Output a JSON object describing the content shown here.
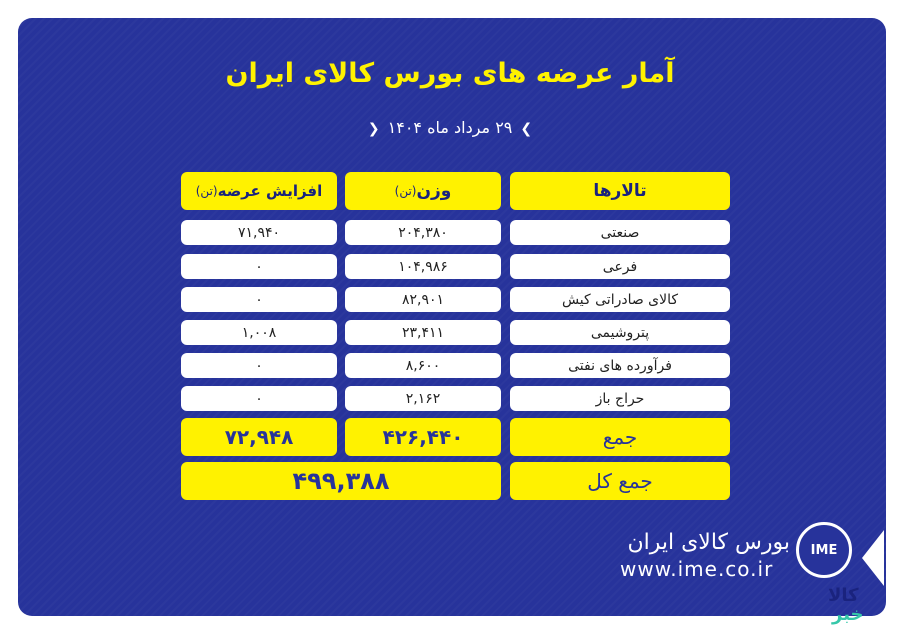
{
  "title": "آمار عرضه های بورس کالای ایران",
  "date": "۲۹ مرداد ماه ۱۴۰۴",
  "headers": {
    "halls": "تالارها",
    "weight": "وزن",
    "weight_unit": "(تن)",
    "increase": "افزایش عرضه",
    "increase_unit": "(تن)"
  },
  "rows": [
    {
      "hall": "صنعتی",
      "weight": "۲۰۴,۳۸۰",
      "increase": "۷۱,۹۴۰"
    },
    {
      "hall": "فرعی",
      "weight": "۱۰۴,۹۸۶",
      "increase": "۰"
    },
    {
      "hall": "کالای صادراتی کیش",
      "weight": "۸۲,۹۰۱",
      "increase": "۰"
    },
    {
      "hall": "پتروشیمی",
      "weight": "۲۳,۴۱۱",
      "increase": "۱,۰۰۸"
    },
    {
      "hall": "فرآورده های نفتی",
      "weight": "۸,۶۰۰",
      "increase": "۰"
    },
    {
      "hall": "حراج باز",
      "weight": "۲,۱۶۲",
      "increase": "۰"
    }
  ],
  "sum": {
    "label": "جمع",
    "weight": "۴۲۶,۴۴۰",
    "increase": "۷۲,۹۴۸"
  },
  "total": {
    "label": "جمع کل",
    "value": "۴۹۹,۳۸۸"
  },
  "footer": {
    "brand": "بورس کالای ایران",
    "url": "www.ime.co.ir",
    "logo": "IME",
    "watermark_top": "کالا",
    "watermark_bottom": "خبر"
  },
  "colors": {
    "background": "#27339b",
    "accent": "#fff200"
  }
}
